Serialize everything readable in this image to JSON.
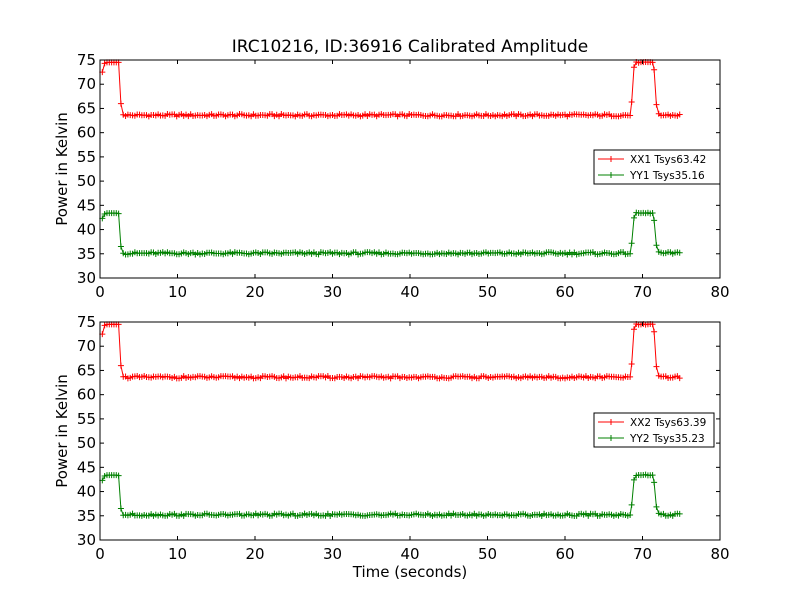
{
  "title": "IRC10216, ID:36916 Calibrated Amplitude",
  "chart_data": [
    {
      "type": "line",
      "ylabel": "Power in Kelvin",
      "xlabel": "",
      "xlim": [
        0,
        80
      ],
      "ylim": [
        30,
        75
      ],
      "xticks": [
        "0",
        "10",
        "20",
        "30",
        "40",
        "50",
        "60",
        "70",
        "80"
      ],
      "yticks": [
        "30",
        "35",
        "40",
        "45",
        "50",
        "55",
        "60",
        "65",
        "70",
        "75"
      ],
      "legend_position": "center-right",
      "series": [
        {
          "name": "XX1 Tsys63.42",
          "color": "#ff0000",
          "marker": "+",
          "x": [
            0.3,
            0.6,
            0.9,
            1.2,
            1.5,
            1.8,
            2.1,
            2.4,
            2.7,
            3.0,
            75.0
          ],
          "y": [
            72.5,
            74.3,
            74.5,
            74.5,
            74.5,
            74.5,
            74.5,
            74.5,
            66.0,
            63.7,
            63.7
          ],
          "plateau_level": 63.6,
          "peak_window": [
            68.7,
            71.7
          ],
          "peak_level": 74.5
        },
        {
          "name": "YY1 Tsys35.16",
          "color": "#008000",
          "marker": "+",
          "x": [
            0.3,
            0.6,
            0.9,
            1.2,
            1.5,
            1.8,
            2.1,
            2.4,
            2.7,
            3.0,
            75.0
          ],
          "y": [
            42.3,
            43.2,
            43.4,
            43.4,
            43.4,
            43.4,
            43.4,
            43.3,
            36.5,
            35.1,
            35.1
          ],
          "plateau_level": 35.1,
          "peak_window": [
            68.7,
            71.7
          ],
          "peak_level": 43.4
        }
      ]
    },
    {
      "type": "line",
      "ylabel": "Power in Kelvin",
      "xlabel": "Time (seconds)",
      "xlim": [
        0,
        80
      ],
      "ylim": [
        30,
        75
      ],
      "xticks": [
        "0",
        "10",
        "20",
        "30",
        "40",
        "50",
        "60",
        "70",
        "80"
      ],
      "yticks": [
        "30",
        "35",
        "40",
        "45",
        "50",
        "55",
        "60",
        "65",
        "70",
        "75"
      ],
      "legend_position": "center-right",
      "series": [
        {
          "name": "XX2 Tsys63.39",
          "color": "#ff0000",
          "marker": "+",
          "x": [
            0.3,
            0.6,
            0.9,
            1.2,
            1.5,
            1.8,
            2.1,
            2.4,
            2.7,
            3.0,
            75.0
          ],
          "y": [
            72.5,
            74.3,
            74.5,
            74.5,
            74.5,
            74.5,
            74.5,
            74.5,
            66.0,
            63.7,
            63.7
          ],
          "plateau_level": 63.6,
          "peak_window": [
            68.7,
            71.7
          ],
          "peak_level": 74.5
        },
        {
          "name": "YY2 Tsys35.23",
          "color": "#008000",
          "marker": "+",
          "x": [
            0.3,
            0.6,
            0.9,
            1.2,
            1.5,
            1.8,
            2.1,
            2.4,
            2.7,
            3.0,
            75.0
          ],
          "y": [
            42.3,
            43.2,
            43.4,
            43.4,
            43.4,
            43.4,
            43.4,
            43.3,
            36.5,
            35.1,
            35.1
          ],
          "plateau_level": 35.2,
          "peak_window": [
            68.7,
            71.7
          ],
          "peak_level": 43.4
        }
      ]
    }
  ]
}
